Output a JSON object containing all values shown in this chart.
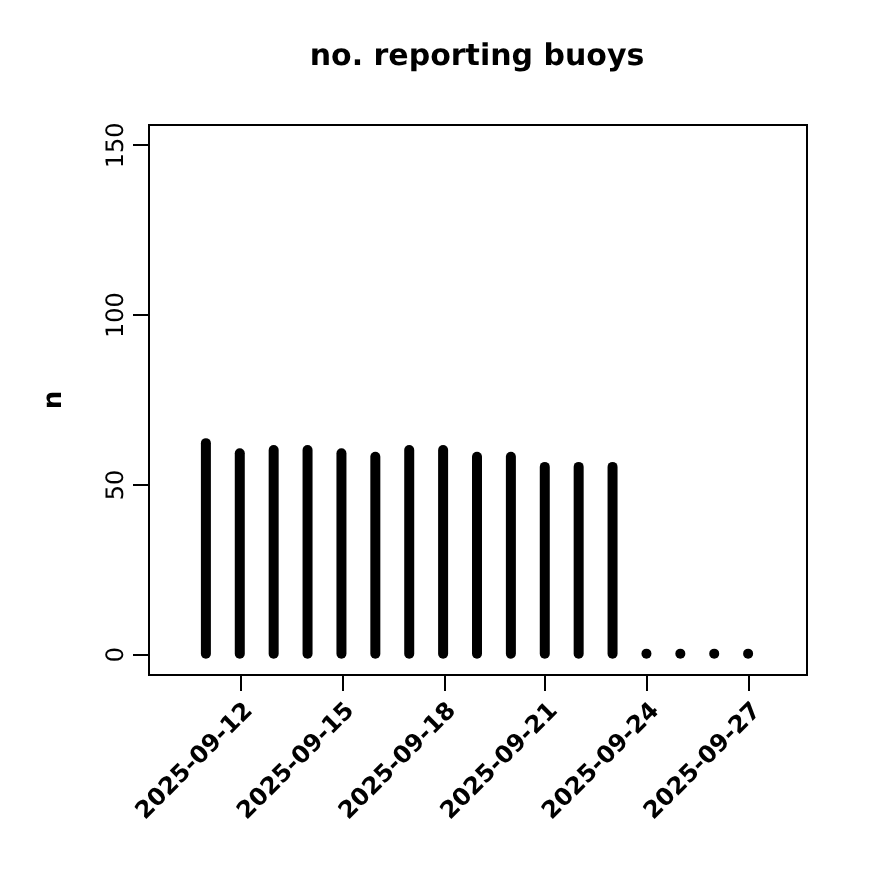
{
  "chart_data": {
    "type": "bar",
    "title": "no. reporting buoys",
    "ylabel": "n",
    "x": [
      "2025-09-11",
      "2025-09-12",
      "2025-09-13",
      "2025-09-14",
      "2025-09-15",
      "2025-09-16",
      "2025-09-17",
      "2025-09-18",
      "2025-09-19",
      "2025-09-20",
      "2025-09-21",
      "2025-09-22",
      "2025-09-23",
      "2025-09-24",
      "2025-09-25",
      "2025-09-26",
      "2025-09-27"
    ],
    "series": [
      {
        "color": "#000000",
        "values": [
          62,
          59,
          60,
          60,
          59,
          58,
          60,
          60,
          58,
          58,
          55,
          55,
          55,
          0,
          0,
          0,
          0
        ]
      }
    ],
    "xlim": [
      "2025-09-09T07:00",
      "2025-09-28T17:00"
    ],
    "xticks": [
      "2025-09-12",
      "2025-09-15",
      "2025-09-18",
      "2025-09-21",
      "2025-09-24",
      "2025-09-27"
    ],
    "ylim": [
      -6,
      156
    ],
    "yticks": [
      0,
      50,
      100,
      150
    ],
    "grid": false
  }
}
